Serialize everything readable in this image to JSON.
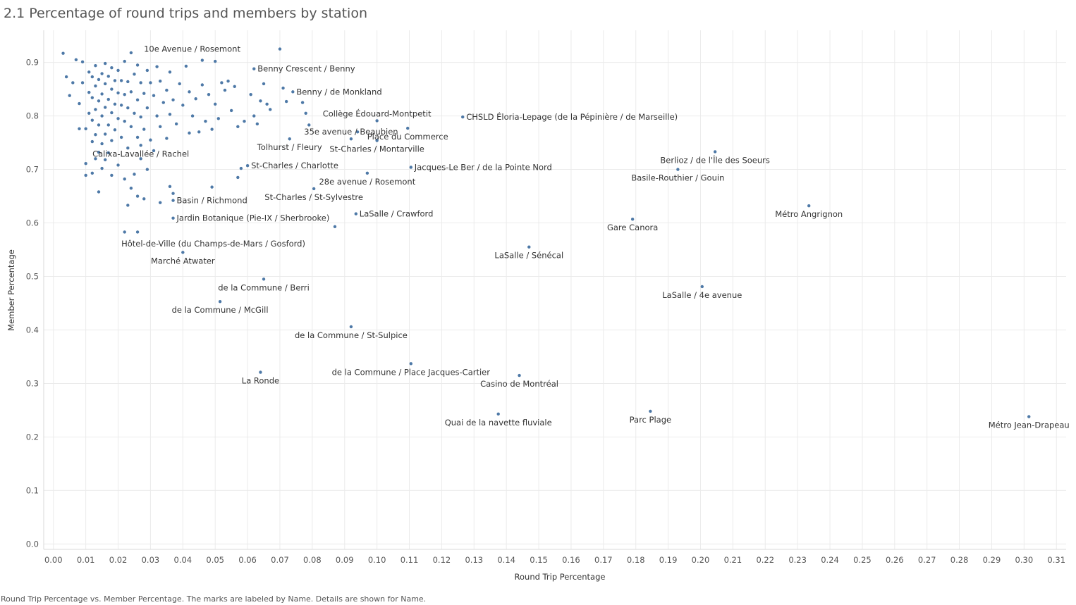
{
  "title": "2.1 Percentage of round trips and members by station",
  "footer_caption": "Round Trip Percentage vs. Member Percentage.  The marks are labeled by Name.  Details are shown for Name.",
  "colors": {
    "mark": "#4e79a7",
    "grid": "#ebebeb",
    "text": "#333333"
  },
  "chart_data": {
    "type": "scatter",
    "title": "2.1 Percentage of round trips and members by station",
    "xlabel": "Round Trip Percentage",
    "ylabel": "Member Percentage",
    "xlim": [
      -0.003,
      0.313
    ],
    "ylim": [
      -0.01,
      0.96
    ],
    "xticks": [
      "0.00",
      "0.01",
      "0.02",
      "0.03",
      "0.04",
      "0.05",
      "0.06",
      "0.07",
      "0.08",
      "0.09",
      "0.10",
      "0.11",
      "0.12",
      "0.13",
      "0.14",
      "0.15",
      "0.16",
      "0.17",
      "0.18",
      "0.19",
      "0.20",
      "0.21",
      "0.22",
      "0.23",
      "0.24",
      "0.25",
      "0.26",
      "0.27",
      "0.28",
      "0.29",
      "0.30",
      "0.31"
    ],
    "yticks": [
      "0.0",
      "0.1",
      "0.2",
      "0.3",
      "0.4",
      "0.5",
      "0.6",
      "0.7",
      "0.8",
      "0.9"
    ],
    "grid": true,
    "labeled_points": [
      {
        "x": 0.07,
        "y": 0.925,
        "name": "10e Avenue / Rosemont",
        "pos": "left"
      },
      {
        "x": 0.062,
        "y": 0.888,
        "name": "Benny Crescent / Benny",
        "pos": "right"
      },
      {
        "x": 0.074,
        "y": 0.845,
        "name": "Benny / de Monkland",
        "pos": "right"
      },
      {
        "x": 0.1,
        "y": 0.791,
        "name": "Collège Édouard-Montpetit",
        "pos": "above"
      },
      {
        "x": 0.1265,
        "y": 0.798,
        "name": "CHSLD Éloria-Lepage (de la Pépinière / de Marseille)",
        "pos": "right"
      },
      {
        "x": 0.092,
        "y": 0.757,
        "name": "35e avenue / Beaubien",
        "pos": "above"
      },
      {
        "x": 0.1095,
        "y": 0.777,
        "name": "Place du Commerce",
        "pos": "below"
      },
      {
        "x": 0.073,
        "y": 0.757,
        "name": "Tolhurst / Fleury",
        "pos": "below"
      },
      {
        "x": 0.1,
        "y": 0.754,
        "name": "St-Charles / Montarville",
        "pos": "below"
      },
      {
        "x": 0.027,
        "y": 0.745,
        "name": "Calixa-Lavallée / Rachel",
        "pos": "below"
      },
      {
        "x": 0.06,
        "y": 0.707,
        "name": "St-Charles / Charlotte",
        "pos": "right"
      },
      {
        "x": 0.1105,
        "y": 0.704,
        "name": "Jacques-Le Ber / de la Pointe Nord",
        "pos": "right"
      },
      {
        "x": 0.097,
        "y": 0.693,
        "name": "28e avenue / Rosemont",
        "pos": "below"
      },
      {
        "x": 0.2045,
        "y": 0.733,
        "name": "Berlioz / de l'Île des Soeurs",
        "pos": "below"
      },
      {
        "x": 0.193,
        "y": 0.7,
        "name": "Basile-Routhier / Gouin",
        "pos": "below"
      },
      {
        "x": 0.037,
        "y": 0.642,
        "name": "Basin / Richmond",
        "pos": "right"
      },
      {
        "x": 0.0805,
        "y": 0.664,
        "name": "St-Charles / St-Sylvestre",
        "pos": "below"
      },
      {
        "x": 0.2335,
        "y": 0.632,
        "name": "Métro Angrignon",
        "pos": "below"
      },
      {
        "x": 0.037,
        "y": 0.609,
        "name": "Jardin Botanique (Pie-IX / Sherbrooke)",
        "pos": "right"
      },
      {
        "x": 0.0935,
        "y": 0.617,
        "name": "LaSalle / Crawford",
        "pos": "right"
      },
      {
        "x": 0.179,
        "y": 0.607,
        "name": "Gare Canora",
        "pos": "below"
      },
      {
        "x": 0.087,
        "y": 0.593,
        "name": "Hôtel-de-Ville (du Champs-de-Mars / Gosford)",
        "pos": "belowleft"
      },
      {
        "x": 0.147,
        "y": 0.555,
        "name": "LaSalle / Sénécal",
        "pos": "below"
      },
      {
        "x": 0.04,
        "y": 0.545,
        "name": "Marché Atwater",
        "pos": "below"
      },
      {
        "x": 0.065,
        "y": 0.495,
        "name": "de la Commune / Berri",
        "pos": "below"
      },
      {
        "x": 0.2005,
        "y": 0.481,
        "name": "LaSalle / 4e avenue",
        "pos": "below"
      },
      {
        "x": 0.0515,
        "y": 0.453,
        "name": "de la Commune / McGill",
        "pos": "below"
      },
      {
        "x": 0.092,
        "y": 0.406,
        "name": "de la Commune / St-Sulpice",
        "pos": "below"
      },
      {
        "x": 0.1105,
        "y": 0.337,
        "name": "de la Commune / Place Jacques-Cartier",
        "pos": "below"
      },
      {
        "x": 0.064,
        "y": 0.321,
        "name": "La Ronde",
        "pos": "below"
      },
      {
        "x": 0.144,
        "y": 0.315,
        "name": "Casino de Montréal",
        "pos": "below"
      },
      {
        "x": 0.1375,
        "y": 0.243,
        "name": "Quai de la navette fluviale",
        "pos": "below"
      },
      {
        "x": 0.1845,
        "y": 0.248,
        "name": "Parc Plage",
        "pos": "below"
      },
      {
        "x": 0.3015,
        "y": 0.238,
        "name": "Métro Jean-Drapeau",
        "pos": "below"
      }
    ],
    "unlabeled_points": [
      [
        0.003,
        0.917
      ],
      [
        0.004,
        0.873
      ],
      [
        0.005,
        0.838
      ],
      [
        0.006,
        0.862
      ],
      [
        0.007,
        0.905
      ],
      [
        0.008,
        0.776
      ],
      [
        0.008,
        0.823
      ],
      [
        0.009,
        0.862
      ],
      [
        0.009,
        0.901
      ],
      [
        0.01,
        0.689
      ],
      [
        0.01,
        0.711
      ],
      [
        0.01,
        0.776
      ],
      [
        0.011,
        0.805
      ],
      [
        0.011,
        0.844
      ],
      [
        0.011,
        0.882
      ],
      [
        0.012,
        0.693
      ],
      [
        0.012,
        0.752
      ],
      [
        0.012,
        0.792
      ],
      [
        0.012,
        0.834
      ],
      [
        0.012,
        0.873
      ],
      [
        0.013,
        0.72
      ],
      [
        0.013,
        0.765
      ],
      [
        0.013,
        0.812
      ],
      [
        0.013,
        0.856
      ],
      [
        0.013,
        0.894
      ],
      [
        0.014,
        0.658
      ],
      [
        0.014,
        0.732
      ],
      [
        0.014,
        0.783
      ],
      [
        0.014,
        0.828
      ],
      [
        0.014,
        0.868
      ],
      [
        0.015,
        0.702
      ],
      [
        0.015,
        0.748
      ],
      [
        0.015,
        0.8
      ],
      [
        0.015,
        0.841
      ],
      [
        0.015,
        0.879
      ],
      [
        0.016,
        0.718
      ],
      [
        0.016,
        0.766
      ],
      [
        0.016,
        0.816
      ],
      [
        0.016,
        0.86
      ],
      [
        0.016,
        0.898
      ],
      [
        0.017,
        0.731
      ],
      [
        0.017,
        0.783
      ],
      [
        0.017,
        0.831
      ],
      [
        0.017,
        0.874
      ],
      [
        0.018,
        0.689
      ],
      [
        0.018,
        0.754
      ],
      [
        0.018,
        0.806
      ],
      [
        0.018,
        0.85
      ],
      [
        0.018,
        0.89
      ],
      [
        0.019,
        0.774
      ],
      [
        0.019,
        0.822
      ],
      [
        0.019,
        0.866
      ],
      [
        0.02,
        0.708
      ],
      [
        0.02,
        0.795
      ],
      [
        0.02,
        0.843
      ],
      [
        0.02,
        0.885
      ],
      [
        0.021,
        0.76
      ],
      [
        0.021,
        0.82
      ],
      [
        0.021,
        0.866
      ],
      [
        0.022,
        0.583
      ],
      [
        0.022,
        0.682
      ],
      [
        0.022,
        0.79
      ],
      [
        0.022,
        0.84
      ],
      [
        0.022,
        0.902
      ],
      [
        0.023,
        0.633
      ],
      [
        0.023,
        0.74
      ],
      [
        0.023,
        0.815
      ],
      [
        0.023,
        0.864
      ],
      [
        0.024,
        0.665
      ],
      [
        0.024,
        0.78
      ],
      [
        0.024,
        0.845
      ],
      [
        0.024,
        0.918
      ],
      [
        0.025,
        0.691
      ],
      [
        0.025,
        0.805
      ],
      [
        0.025,
        0.878
      ],
      [
        0.026,
        0.583
      ],
      [
        0.026,
        0.65
      ],
      [
        0.026,
        0.76
      ],
      [
        0.026,
        0.83
      ],
      [
        0.026,
        0.895
      ],
      [
        0.027,
        0.72
      ],
      [
        0.027,
        0.798
      ],
      [
        0.027,
        0.862
      ],
      [
        0.028,
        0.645
      ],
      [
        0.028,
        0.775
      ],
      [
        0.028,
        0.842
      ],
      [
        0.029,
        0.7
      ],
      [
        0.029,
        0.815
      ],
      [
        0.029,
        0.885
      ],
      [
        0.03,
        0.755
      ],
      [
        0.03,
        0.862
      ],
      [
        0.031,
        0.735
      ],
      [
        0.031,
        0.838
      ],
      [
        0.032,
        0.8
      ],
      [
        0.032,
        0.892
      ],
      [
        0.033,
        0.638
      ],
      [
        0.033,
        0.78
      ],
      [
        0.033,
        0.865
      ],
      [
        0.034,
        0.825
      ],
      [
        0.035,
        0.758
      ],
      [
        0.035,
        0.848
      ],
      [
        0.036,
        0.668
      ],
      [
        0.036,
        0.803
      ],
      [
        0.036,
        0.882
      ],
      [
        0.037,
        0.655
      ],
      [
        0.037,
        0.83
      ],
      [
        0.038,
        0.785
      ],
      [
        0.039,
        0.86
      ],
      [
        0.04,
        0.82
      ],
      [
        0.041,
        0.893
      ],
      [
        0.042,
        0.768
      ],
      [
        0.042,
        0.845
      ],
      [
        0.043,
        0.8
      ],
      [
        0.044,
        0.832
      ],
      [
        0.045,
        0.77
      ],
      [
        0.046,
        0.858
      ],
      [
        0.046,
        0.904
      ],
      [
        0.047,
        0.79
      ],
      [
        0.048,
        0.84
      ],
      [
        0.049,
        0.667
      ],
      [
        0.049,
        0.775
      ],
      [
        0.05,
        0.822
      ],
      [
        0.05,
        0.902
      ],
      [
        0.051,
        0.795
      ],
      [
        0.052,
        0.862
      ],
      [
        0.053,
        0.848
      ],
      [
        0.054,
        0.865
      ],
      [
        0.055,
        0.81
      ],
      [
        0.056,
        0.855
      ],
      [
        0.057,
        0.685
      ],
      [
        0.057,
        0.78
      ],
      [
        0.058,
        0.702
      ],
      [
        0.059,
        0.79
      ],
      [
        0.061,
        0.84
      ],
      [
        0.062,
        0.8
      ],
      [
        0.063,
        0.785
      ],
      [
        0.064,
        0.828
      ],
      [
        0.065,
        0.86
      ],
      [
        0.066,
        0.822
      ],
      [
        0.067,
        0.812
      ],
      [
        0.071,
        0.852
      ],
      [
        0.072,
        0.827
      ],
      [
        0.077,
        0.825
      ],
      [
        0.078,
        0.805
      ],
      [
        0.079,
        0.783
      ],
      [
        0.094,
        0.77
      ]
    ]
  }
}
